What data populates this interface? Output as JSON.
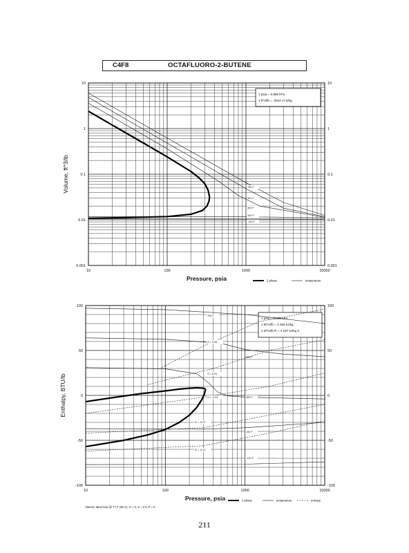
{
  "header": {
    "code": "C4F8",
    "name": "OCTAFLUORO-2-BUTENE"
  },
  "page_number": "211",
  "chart_data": [
    {
      "type": "line",
      "xlabel": "Pressure,  psia",
      "ylabel": "Volume, ft^3/lb",
      "x_scale": "log",
      "y_scale": "log",
      "xlim": [
        10,
        10000
      ],
      "ylim": [
        0.001,
        10
      ],
      "grid": true,
      "x_ticks": [
        "10",
        "100",
        "1000",
        "10000"
      ],
      "y_ticks": [
        "0.001",
        "0.01",
        "0.1",
        "1",
        "10"
      ],
      "notes": [
        "1 psia = 6.895 kPa",
        "1 ft^3/lb = .0624 m^3/kg"
      ],
      "legend": {
        "placement": "bottom-right",
        "items": [
          "2 phase",
          "temperature"
        ]
      },
      "two_phase": {
        "liquid": [
          [
            10,
            0.0108
          ],
          [
            30,
            0.0112
          ],
          [
            100,
            0.0118
          ],
          [
            200,
            0.0132
          ],
          [
            280,
            0.016
          ],
          [
            320,
            0.02
          ],
          [
            340,
            0.026
          ],
          [
            345,
            0.032
          ]
        ],
        "vapor": [
          [
            345,
            0.032
          ],
          [
            330,
            0.045
          ],
          [
            300,
            0.062
          ],
          [
            250,
            0.085
          ],
          [
            200,
            0.115
          ],
          [
            100,
            0.24
          ],
          [
            50,
            0.48
          ],
          [
            20,
            1.2
          ],
          [
            10,
            2.4
          ]
        ]
      },
      "isotherms": [
        {
          "label": "700 F",
          "points": [
            [
              10,
              6.0
            ],
            [
              100,
              0.62
            ],
            [
              1000,
              0.065
            ],
            [
              3000,
              0.024
            ],
            [
              10000,
              0.0125
            ]
          ]
        },
        {
          "label": "500 F",
          "points": [
            [
              10,
              4.8
            ],
            [
              100,
              0.48
            ],
            [
              1000,
              0.048
            ],
            [
              3000,
              0.018
            ],
            [
              10000,
              0.0117
            ]
          ]
        },
        {
          "label": "300 F",
          "points": [
            [
              10,
              3.6
            ],
            [
              100,
              0.36
            ],
            [
              450,
              0.07
            ],
            [
              800,
              0.034
            ],
            [
              1500,
              0.02
            ],
            [
              10000,
              0.0113
            ]
          ]
        },
        {
          "label": "100 F",
          "points": [
            [
              10,
              0.0118
            ],
            [
              1000,
              0.0116
            ],
            [
              10000,
              0.0111
            ]
          ]
        },
        {
          "label": "-100 F",
          "points": [
            [
              10,
              0.0105
            ],
            [
              10000,
              0.0104
            ]
          ]
        }
      ]
    },
    {
      "type": "line",
      "xlabel": "Pressure,  psia",
      "ylabel": "Enthalpy, BTU/lb",
      "x_scale": "log",
      "y_scale": "linear",
      "xlim": [
        10,
        10000
      ],
      "ylim": [
        -100,
        100
      ],
      "grid": true,
      "x_ticks": [
        "10",
        "100",
        "1000",
        "10000"
      ],
      "y_ticks": [
        "-100",
        "-50",
        "0",
        "50",
        "100"
      ],
      "notes": [
        "1 psia = 6.895 kPa",
        "1 BTU/lb = 2.326 kJ/kg",
        "1 BTU/lb R = 4.187 kJ/kg K"
      ],
      "footnote": "Datum: Ideal Gas @ 77 F (25 C),  H = 0,  S = 0 in P = 0",
      "legend": {
        "placement": "bottom-right",
        "items": [
          "2 phase",
          "temperature",
          "entropy"
        ]
      },
      "two_phase": {
        "liquid": [
          [
            10,
            -57
          ],
          [
            30,
            -50
          ],
          [
            60,
            -44
          ],
          [
            100,
            -38
          ],
          [
            150,
            -30
          ],
          [
            200,
            -22
          ],
          [
            250,
            -13
          ],
          [
            290,
            -4
          ],
          [
            310,
            2
          ],
          [
            320,
            7
          ]
        ],
        "vapor": [
          [
            320,
            7
          ],
          [
            300,
            8
          ],
          [
            250,
            8.5
          ],
          [
            200,
            8
          ],
          [
            150,
            7
          ],
          [
            100,
            5
          ],
          [
            50,
            2
          ],
          [
            20,
            -3
          ],
          [
            10,
            -7
          ]
        ]
      },
      "isotherms": [
        {
          "label": "700 F",
          "points": [
            [
              10,
              97
            ],
            [
              100,
              95.5
            ],
            [
              1000,
              90
            ],
            [
              10000,
              80
            ]
          ]
        },
        {
          "label": "500 F",
          "points": [
            [
              10,
              64
            ],
            [
              100,
              62.5
            ],
            [
              500,
              58
            ],
            [
              1000,
              51
            ],
            [
              3000,
              46
            ],
            [
              10000,
              43
            ]
          ]
        },
        {
          "label": "300 F",
          "points": [
            [
              10,
              31
            ],
            [
              100,
              29.5
            ],
            [
              250,
              24
            ],
            [
              350,
              14
            ],
            [
              450,
              4
            ],
            [
              600,
              -0.5
            ],
            [
              1000,
              -2
            ],
            [
              10000,
              -4
            ]
          ]
        },
        {
          "label": "100 F",
          "points": [
            [
              10,
              -37
            ],
            [
              300,
              -37.5
            ],
            [
              1000,
              -36
            ],
            [
              10000,
              -30
            ]
          ]
        },
        {
          "label": "-100 F",
          "points": [
            [
              10,
              -77
            ],
            [
              1000,
              -76.5
            ],
            [
              10000,
              -74
            ]
          ]
        }
      ],
      "isentropes": [
        {
          "label": "S = 0.05",
          "points": [
            [
              90,
              31
            ],
            [
              300,
              55
            ],
            [
              1500,
              82
            ],
            [
              10000,
              96
            ]
          ]
        },
        {
          "label": "S = 0.01",
          "points": [
            [
              60,
              12
            ],
            [
              400,
              30
            ],
            [
              2000,
              50
            ],
            [
              10000,
              62
            ]
          ]
        },
        {
          "label": "S = -0.02",
          "points": [
            [
              10,
              -20
            ],
            [
              300,
              -2
            ],
            [
              2000,
              10
            ],
            [
              10000,
              25
            ]
          ]
        },
        {
          "label": "S = -0.07",
          "points": [
            [
              10,
              -42
            ],
            [
              300,
              -36
            ],
            [
              2000,
              -22
            ],
            [
              10000,
              -10
            ]
          ]
        },
        {
          "label": "S = -0.12",
          "points": [
            [
              10,
              -62
            ],
            [
              300,
              -56
            ],
            [
              2000,
              -42
            ],
            [
              10000,
              -28
            ]
          ]
        }
      ]
    }
  ]
}
